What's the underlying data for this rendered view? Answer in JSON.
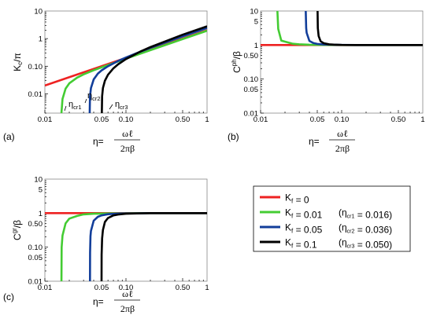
{
  "colors": {
    "red": "#ee2222",
    "green": "#44cc33",
    "blue": "#123e9a",
    "black": "#000000"
  },
  "chart_data": [
    {
      "type": "line",
      "panel_label": "(a)",
      "ylabel": "K_c/π",
      "xlabel": "η = ωℓ / 2πβ",
      "xscale": "log",
      "yscale": "log",
      "xlim": [
        0.01,
        1
      ],
      "ylim": [
        0.002,
        10
      ],
      "x_ticks": [
        "0.01",
        "0.05",
        "0.10",
        "0.50",
        "1"
      ],
      "y_ticks": [
        "0.01",
        "0.10",
        "1",
        "10"
      ],
      "annotations": [
        "η_cr1",
        "η_cr2",
        "η_cr3"
      ],
      "series": [
        {
          "name": "K_f = 0",
          "color": "red",
          "x": [
            0.01,
            0.02,
            0.05,
            0.1,
            0.2,
            0.5,
            1.0
          ],
          "y": [
            0.02,
            0.04,
            0.1,
            0.2,
            0.4,
            1.0,
            2.0
          ]
        },
        {
          "name": "K_f = 0.01",
          "color": "green",
          "x": [
            0.016,
            0.0165,
            0.018,
            0.02,
            0.025,
            0.03,
            0.04,
            0.06,
            0.1,
            0.2,
            0.5,
            1.0
          ],
          "y": [
            0.002,
            0.0065,
            0.0154,
            0.024,
            0.0387,
            0.0507,
            0.0715,
            0.1103,
            0.1873,
            0.3805,
            0.9602,
            1.9249
          ]
        },
        {
          "name": "K_f = 0.05",
          "color": "blue",
          "x": [
            0.0357,
            0.036,
            0.037,
            0.04,
            0.045,
            0.05,
            0.06,
            0.08,
            0.1,
            0.15,
            0.2,
            0.5,
            1.0
          ],
          "y": [
            0.002,
            0.0079,
            0.0161,
            0.0333,
            0.0537,
            0.0704,
            0.0998,
            0.1548,
            0.207,
            0.3346,
            0.4614,
            1.2069,
            2.4169
          ]
        },
        {
          "name": "K_f = 0.1",
          "color": "black",
          "x": [
            0.0504,
            0.0508,
            0.052,
            0.055,
            0.06,
            0.07,
            0.08,
            0.1,
            0.15,
            0.2,
            0.5,
            1.0
          ],
          "y": [
            0.002,
            0.0081,
            0.0162,
            0.0298,
            0.0489,
            0.0839,
            0.1172,
            0.1813,
            0.3374,
            0.4918,
            1.3842,
            2.7891
          ]
        }
      ]
    },
    {
      "type": "line",
      "panel_label": "(b)",
      "ylabel": "C^ph/β",
      "xlabel": "η = ωℓ / 2πβ",
      "xscale": "log",
      "yscale": "log",
      "xlim": [
        0.01,
        1
      ],
      "ylim": [
        0.01,
        10
      ],
      "x_ticks": [
        "0.01",
        "0.05",
        "0.10",
        "0.50",
        "1"
      ],
      "y_ticks": [
        "0.01",
        "0.05",
        "0.10",
        "0.50",
        "1",
        "5",
        "10"
      ],
      "series": [
        {
          "name": "K_f = 0",
          "color": "red",
          "x": [
            0.01,
            1.0
          ],
          "y": [
            1.0,
            1.0
          ]
        },
        {
          "name": "K_f = 0.01",
          "color": "green",
          "x": [
            0.01612,
            0.0165,
            0.018,
            0.02,
            0.025,
            0.03,
            0.04,
            0.06,
            0.1,
            0.2,
            0.5,
            1.0
          ],
          "y": [
            10.0,
            2.97,
            1.35,
            1.26,
            1.09,
            1.05,
            1.02,
            1.01,
            1.0,
            1.0,
            1.0,
            1.0
          ]
        },
        {
          "name": "K_f = 0.05",
          "color": "blue",
          "x": [
            0.03605,
            0.0365,
            0.037,
            0.04,
            0.045,
            0.05,
            0.06,
            0.08,
            0.1,
            0.15,
            0.2,
            0.5,
            1.0
          ],
          "y": [
            10.0,
            3.15,
            2.29,
            1.32,
            1.14,
            1.08,
            1.04,
            1.02,
            1.01,
            1.0,
            1.0,
            1.0,
            1.0
          ]
        },
        {
          "name": "K_f = 0.1",
          "color": "black",
          "x": [
            0.05045,
            0.0508,
            0.052,
            0.055,
            0.06,
            0.07,
            0.08,
            0.1,
            0.15,
            0.2,
            0.5,
            1.0
          ],
          "y": [
            10.0,
            3.14,
            1.83,
            1.29,
            1.13,
            1.05,
            1.03,
            1.01,
            1.0,
            1.0,
            1.0,
            1.0
          ]
        }
      ]
    },
    {
      "type": "line",
      "panel_label": "(c)",
      "ylabel": "C^gr/β",
      "xlabel": "η = ωℓ / 2πβ",
      "xscale": "log",
      "yscale": "log",
      "xlim": [
        0.01,
        1
      ],
      "ylim": [
        0.01,
        10
      ],
      "x_ticks": [
        "0.01",
        "0.05",
        "0.10",
        "0.50",
        "1"
      ],
      "y_ticks": [
        "0.01",
        "0.05",
        "0.10",
        "0.50",
        "1",
        "5",
        "10"
      ],
      "series": [
        {
          "name": "K_f = 0",
          "color": "red",
          "x": [
            0.01,
            1.0
          ],
          "y": [
            1.0,
            1.0
          ]
        },
        {
          "name": "K_f = 0.01",
          "color": "green",
          "x": [
            0.01601,
            0.0161,
            0.0165,
            0.018,
            0.02,
            0.025,
            0.03,
            0.04,
            0.06,
            0.1,
            0.2,
            0.5,
            1.0
          ],
          "y": [
            0.01,
            0.1,
            0.22,
            0.5,
            0.69,
            0.83,
            0.92,
            0.96,
            0.98,
            0.99,
            1.0,
            1.0,
            1.0
          ]
        },
        {
          "name": "K_f = 0.05",
          "color": "blue",
          "x": [
            0.03601,
            0.0361,
            0.0365,
            0.037,
            0.04,
            0.045,
            0.05,
            0.06,
            0.08,
            0.1,
            0.15,
            0.2,
            0.5,
            1.0
          ],
          "y": [
            0.01,
            0.07,
            0.21,
            0.3,
            0.6,
            0.78,
            0.86,
            0.93,
            0.97,
            0.98,
            0.99,
            1.0,
            1.0,
            1.0
          ]
        },
        {
          "name": "K_f = 0.1",
          "color": "black",
          "x": [
            0.05001,
            0.0501,
            0.0508,
            0.052,
            0.055,
            0.06,
            0.07,
            0.08,
            0.1,
            0.15,
            0.2,
            0.5,
            1.0
          ],
          "y": [
            0.01,
            0.06,
            0.18,
            0.32,
            0.55,
            0.72,
            0.86,
            0.91,
            0.96,
            0.99,
            1.0,
            1.0,
            1.0
          ]
        }
      ]
    }
  ],
  "legend": {
    "entries": [
      {
        "color": "red",
        "text": "K_f = 0",
        "note": ""
      },
      {
        "color": "green",
        "text": "K_f = 0.01",
        "note": "(η_cr1 = 0.016)"
      },
      {
        "color": "blue",
        "text": "K_f = 0.05",
        "note": "(η_cr2 = 0.036)"
      },
      {
        "color": "black",
        "text": "K_f = 0.1",
        "note": "(η_cr3 = 0.050)"
      }
    ]
  }
}
